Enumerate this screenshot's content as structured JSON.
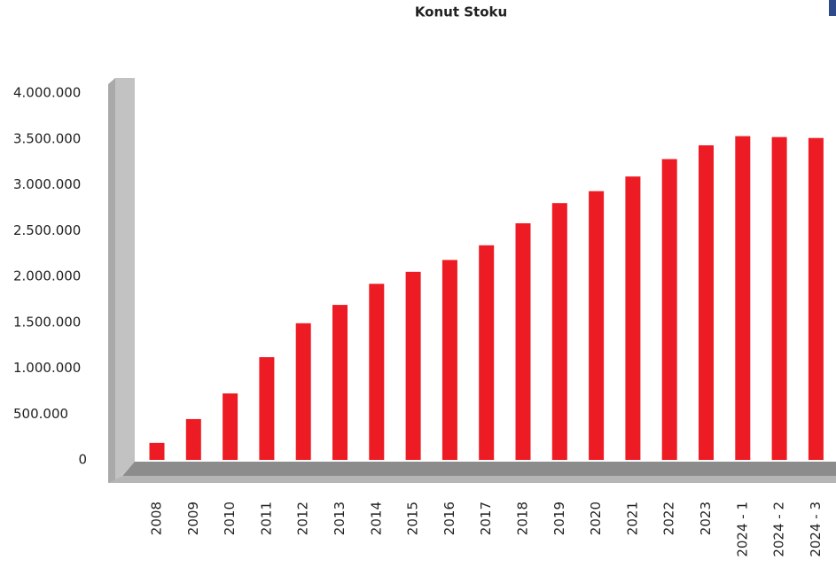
{
  "chart_data": {
    "type": "bar",
    "title": "Konut Stoku",
    "categories": [
      "2008",
      "2009",
      "2010",
      "2011",
      "2012",
      "2013",
      "2014",
      "2015",
      "2016",
      "2017",
      "2018",
      "2019",
      "2020",
      "2021",
      "2022",
      "2023",
      "2024 - 1",
      "2024 - 2",
      "2024 - 3"
    ],
    "values": [
      185000,
      445000,
      725000,
      1120000,
      1490000,
      1690000,
      1920000,
      2050000,
      2180000,
      2340000,
      2580000,
      2800000,
      2930000,
      3090000,
      3280000,
      3430000,
      3530000,
      3520000,
      3510000
    ],
    "color": "#ed1c24",
    "ylim": [
      0,
      4000000
    ],
    "yticks": [
      0,
      {
        "value": 500000,
        "label": "500.000"
      },
      {
        "value": 1000000,
        "label": "1.000.000"
      },
      {
        "value": 1500000,
        "label": "1.500.000"
      },
      {
        "value": 2000000,
        "label": "2.000.000"
      },
      {
        "value": 2500000,
        "label": "2.500.000"
      },
      {
        "value": 3000000,
        "label": "3.000.000"
      },
      {
        "value": 3500000,
        "label": "3.500.000"
      },
      {
        "value": 4000000,
        "label": "4.000.000"
      }
    ]
  }
}
